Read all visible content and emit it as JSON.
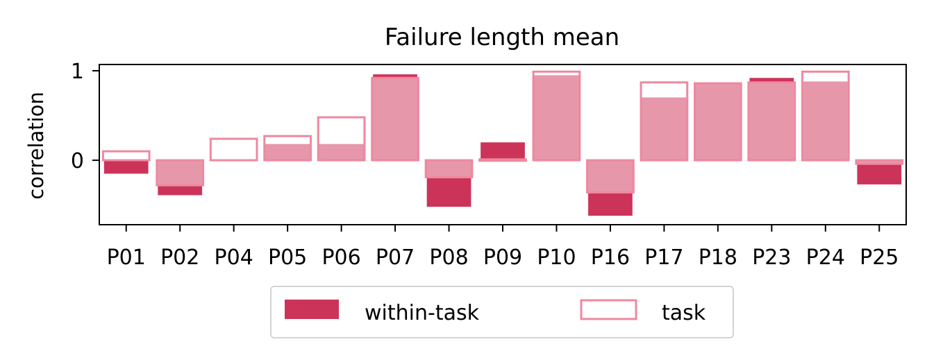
{
  "chart_data": {
    "type": "bar",
    "title": "Failure length mean",
    "xlabel": "",
    "ylabel": "correlation",
    "ylim": [
      -0.72,
      1.07
    ],
    "yticks": [
      {
        "value": 0,
        "label": "0"
      },
      {
        "value": 1,
        "label": "1"
      }
    ],
    "categories": [
      "P01",
      "P02",
      "P04",
      "P05",
      "P06",
      "P07",
      "P08",
      "P09",
      "P10",
      "P16",
      "P17",
      "P18",
      "P23",
      "P24",
      "P25"
    ],
    "series": [
      {
        "name": "within-task",
        "style": "filled",
        "values": [
          -0.15,
          -0.39,
          0.0,
          0.18,
          0.18,
          0.96,
          -0.52,
          0.2,
          0.95,
          -0.62,
          0.7,
          0.85,
          0.92,
          0.88,
          -0.27
        ]
      },
      {
        "name": "task",
        "style": "outline",
        "values": [
          0.1,
          -0.28,
          0.24,
          0.27,
          0.48,
          0.92,
          -0.19,
          0.01,
          0.99,
          -0.36,
          0.87,
          0.86,
          0.87,
          0.99,
          -0.04
        ]
      }
    ],
    "legend": {
      "position": "bottom-center",
      "columns": 2
    },
    "grid": false
  },
  "colors": {
    "within_task": "#cc3358",
    "task_edge": "#ee88a0",
    "overlap_fill": "#e698aa"
  }
}
